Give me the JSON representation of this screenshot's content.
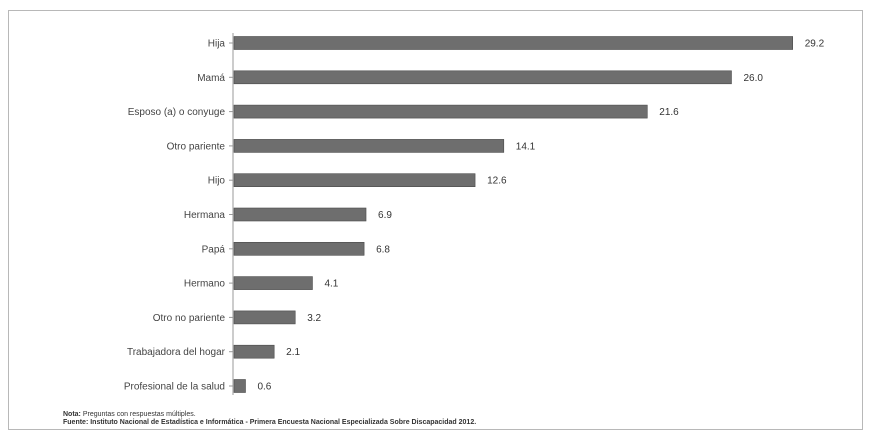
{
  "chart_data": {
    "type": "bar",
    "orientation": "horizontal",
    "categories": [
      "Hija",
      "Mamá",
      "Esposo (a) o conyuge",
      "Otro pariente",
      "Hijo",
      "Hermana",
      "Papá",
      "Hermano",
      "Otro no pariente",
      "Trabajadora del hogar",
      "Profesional de la salud"
    ],
    "values": [
      29.2,
      26.0,
      21.6,
      14.1,
      12.6,
      6.9,
      6.8,
      4.1,
      3.2,
      2.1,
      0.6
    ],
    "value_labels": [
      "29.2",
      "26.0",
      "21.6",
      "14.1",
      "12.6",
      "6.9",
      "6.8",
      "4.1",
      "3.2",
      "2.1",
      "0.6"
    ],
    "xlim": [
      0,
      30
    ],
    "bar_color": "#6e6e6e",
    "grid": false,
    "title": "",
    "xlabel": "",
    "ylabel": ""
  },
  "notes": {
    "note_label": "Nota:",
    "note_text": "Preguntas con respuestas múltiples.",
    "source_label": "Fuente:",
    "source_text": "Instituto Nacional de Estadística e Informática - Primera Encuesta Nacional Especializada Sobre Discapacidad 2012."
  }
}
